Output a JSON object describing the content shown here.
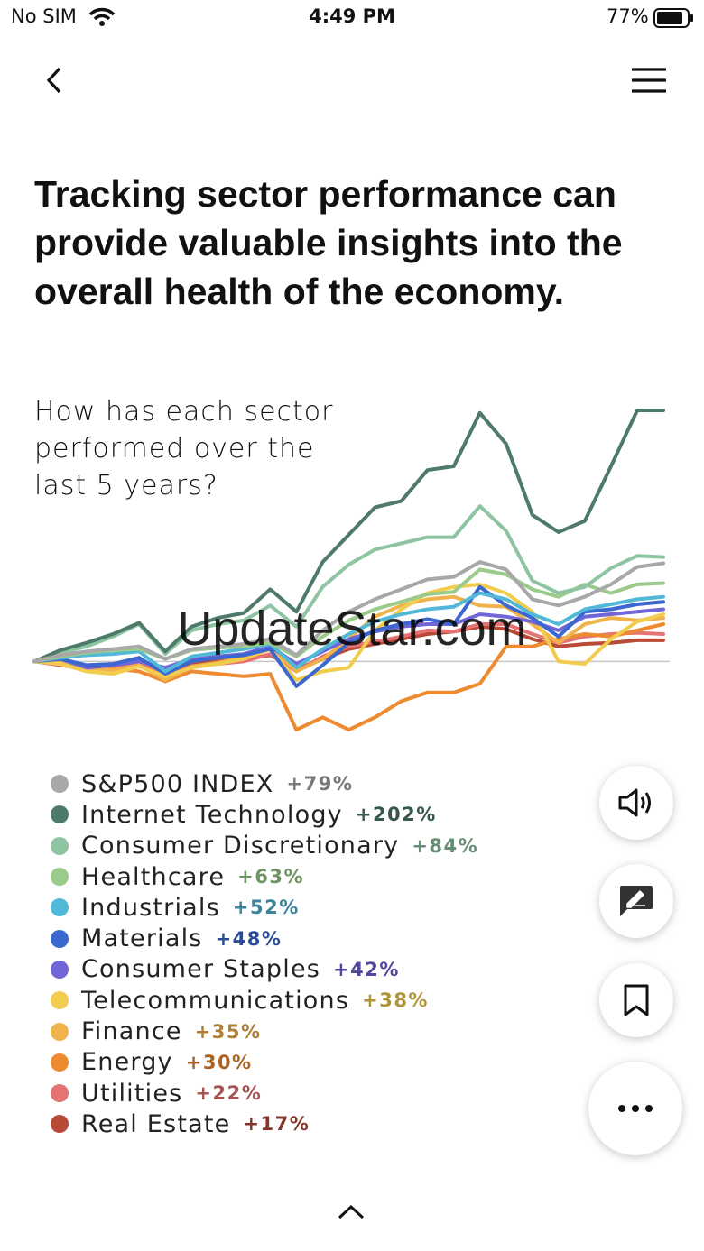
{
  "status_bar": {
    "carrier": "No SIM",
    "time": "4:49 PM",
    "battery": "77%"
  },
  "header": {
    "title": "Tracking sector performance can provide valuable insights into the overall health of the economy."
  },
  "watermark": "UpdateStar.com",
  "chart_data": {
    "type": "line",
    "title": "How has each sector performed over the last 5 years?",
    "categories": [
      null,
      null,
      null,
      null,
      null,
      null,
      null,
      null,
      null,
      null,
      null,
      null,
      null,
      null,
      null,
      null,
      null,
      null,
      null,
      null,
      null,
      null,
      null,
      null,
      null
    ],
    "ylim": [
      -60,
      210
    ],
    "baseline": 0,
    "grid": false,
    "legend": "bottom",
    "series": [
      {
        "name": "S&P500 INDEX",
        "total_label": "+79%",
        "color": "#a8a8a8",
        "values": [
          0,
          5,
          8,
          10,
          12,
          2,
          10,
          12,
          14,
          18,
          5,
          25,
          40,
          50,
          58,
          66,
          68,
          80,
          74,
          50,
          45,
          52,
          62,
          76,
          79
        ]
      },
      {
        "name": "Internet Technology",
        "total_label": "+202%",
        "color": "#4e7a69",
        "values": [
          0,
          9,
          15,
          22,
          31,
          8,
          28,
          35,
          39,
          58,
          40,
          80,
          102,
          124,
          129,
          154,
          157,
          200,
          175,
          118,
          104,
          113,
          157,
          202,
          202
        ]
      },
      {
        "name": "Consumer Discretionary",
        "total_label": "+84%",
        "color": "#8fc4a2",
        "values": [
          0,
          7,
          12,
          20,
          30,
          6,
          25,
          30,
          33,
          45,
          28,
          60,
          78,
          90,
          95,
          100,
          100,
          125,
          105,
          65,
          55,
          60,
          75,
          85,
          84
        ]
      },
      {
        "name": "Healthcare",
        "total_label": "+63%",
        "color": "#9acb8a",
        "values": [
          0,
          4,
          7,
          9,
          10,
          2,
          9,
          11,
          12,
          15,
          4,
          20,
          33,
          42,
          48,
          54,
          56,
          74,
          70,
          58,
          52,
          62,
          55,
          62,
          63
        ]
      },
      {
        "name": "Industrials",
        "total_label": "+52%",
        "color": "#52b8d8",
        "values": [
          0,
          3,
          5,
          6,
          8,
          -8,
          4,
          7,
          10,
          14,
          -5,
          10,
          22,
          32,
          38,
          42,
          44,
          55,
          50,
          38,
          30,
          42,
          46,
          50,
          52
        ]
      },
      {
        "name": "Materials",
        "total_label": "+48%",
        "color": "#3a68d0",
        "values": [
          0,
          2,
          -3,
          -2,
          3,
          -10,
          0,
          3,
          5,
          10,
          -20,
          -3,
          15,
          25,
          30,
          34,
          30,
          60,
          45,
          35,
          20,
          40,
          42,
          46,
          48
        ]
      },
      {
        "name": "Consumer Staples",
        "total_label": "+42%",
        "color": "#7166d8",
        "values": [
          0,
          2,
          -5,
          -3,
          0,
          -5,
          2,
          4,
          6,
          12,
          -2,
          8,
          18,
          24,
          28,
          30,
          30,
          38,
          36,
          32,
          25,
          36,
          38,
          40,
          42
        ]
      },
      {
        "name": "Telecommunications",
        "total_label": "+38%",
        "color": "#f2cc4e",
        "values": [
          0,
          -2,
          -8,
          -10,
          -4,
          -12,
          -5,
          -2,
          2,
          10,
          -15,
          -8,
          -5,
          25,
          42,
          55,
          60,
          62,
          55,
          40,
          0,
          -2,
          18,
          32,
          38
        ]
      },
      {
        "name": "Finance",
        "total_label": "+35%",
        "color": "#f0b24a",
        "values": [
          0,
          -1,
          -5,
          -7,
          -3,
          -15,
          -4,
          -1,
          3,
          12,
          -8,
          2,
          18,
          36,
          45,
          50,
          52,
          45,
          44,
          30,
          15,
          30,
          35,
          33,
          35
        ]
      },
      {
        "name": "Energy",
        "total_label": "+30%",
        "color": "#ee8a30",
        "values": [
          0,
          -2,
          -4,
          -6,
          -8,
          -16,
          -8,
          -10,
          -12,
          -10,
          -55,
          -45,
          -55,
          -45,
          -32,
          -25,
          -25,
          -18,
          12,
          12,
          18,
          22,
          20,
          25,
          30
        ]
      },
      {
        "name": "Utilities",
        "total_label": "+22%",
        "color": "#e57373",
        "values": [
          0,
          -3,
          -6,
          -4,
          -2,
          -10,
          -4,
          -2,
          0,
          6,
          -8,
          4,
          12,
          16,
          20,
          25,
          24,
          30,
          30,
          22,
          15,
          20,
          22,
          23,
          22
        ]
      },
      {
        "name": "Real Estate",
        "total_label": "+17%",
        "color": "#b84a36",
        "values": [
          0,
          -1,
          -3,
          -2,
          0,
          -8,
          -2,
          0,
          2,
          5,
          -6,
          2,
          10,
          14,
          18,
          22,
          24,
          28,
          26,
          18,
          12,
          14,
          15,
          17,
          17
        ]
      }
    ]
  }
}
